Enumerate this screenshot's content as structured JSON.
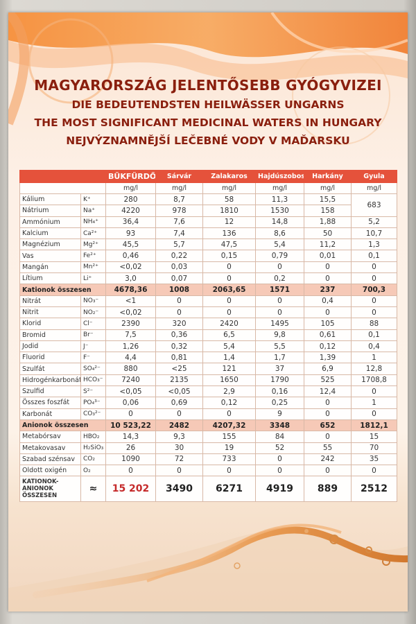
{
  "title": {
    "hu": "MAGYARORSZÁG JELENTŐSEBB GYÓGYVIZEI",
    "de": "DIE BEDEUTENDSTEN HEILWÄSSER UNGARNS",
    "en": "THE MOST SIGNIFICANT MEDICINAL WATERS IN HUNGARY",
    "cz": "NEJVÝZNAMNĚJŠÍ LEČEBNÉ VODY V MAĎARSKU"
  },
  "columns": [
    "BÜKFÜRDŐ",
    "Sárvár",
    "Zalakaros",
    "Hajdúszoboszló",
    "Harkány",
    "Gyula"
  ],
  "unit": "mg/l",
  "cations": [
    {
      "name": "Kálium",
      "sym": "K⁺",
      "v": [
        "280",
        "8,7",
        "58",
        "11,3",
        "15,5",
        ""
      ]
    },
    {
      "name": "Nátrium",
      "sym": "Na⁺",
      "v": [
        "4220",
        "978",
        "1810",
        "1530",
        "158",
        "683"
      ]
    },
    {
      "name": "Ammónium",
      "sym": "NH₄⁺",
      "v": [
        "36,4",
        "7,6",
        "12",
        "14,8",
        "1,88",
        "5,2"
      ]
    },
    {
      "name": "Kalcium",
      "sym": "Ca²⁺",
      "v": [
        "93",
        "7,4",
        "136",
        "8,6",
        "50",
        "10,7"
      ]
    },
    {
      "name": "Magnézium",
      "sym": "Mg²⁺",
      "v": [
        "45,5",
        "5,7",
        "47,5",
        "5,4",
        "11,2",
        "1,3"
      ]
    },
    {
      "name": "Vas",
      "sym": "Fe²⁺",
      "v": [
        "0,46",
        "0,22",
        "0,15",
        "0,79",
        "0,01",
        "0,1"
      ]
    },
    {
      "name": "Mangán",
      "sym": "Mn²⁺",
      "v": [
        "<0,02",
        "0,03",
        "0",
        "0",
        "0",
        "0"
      ]
    },
    {
      "name": "Lítium",
      "sym": "Li⁺",
      "v": [
        "3,0",
        "0,07",
        "0",
        "0,2",
        "0",
        "0"
      ]
    }
  ],
  "cation_sum": {
    "name": "Kationok összesen",
    "v": [
      "4678,36",
      "1008",
      "2063,65",
      "1571",
      "237",
      "700,3"
    ]
  },
  "anions": [
    {
      "name": "Nitrát",
      "sym": "NO₃⁻",
      "v": [
        "<1",
        "0",
        "0",
        "0",
        "0,4",
        "0"
      ]
    },
    {
      "name": "Nitrit",
      "sym": "NO₂⁻",
      "v": [
        "<0,02",
        "0",
        "0",
        "0",
        "0",
        "0"
      ]
    },
    {
      "name": "Klorid",
      "sym": "Cl⁻",
      "v": [
        "2390",
        "320",
        "2420",
        "1495",
        "105",
        "88"
      ]
    },
    {
      "name": "Bromid",
      "sym": "Br⁻",
      "v": [
        "7,5",
        "0,36",
        "6,5",
        "9,8",
        "0,61",
        "0,1"
      ]
    },
    {
      "name": "Jodid",
      "sym": "J⁻",
      "v": [
        "1,26",
        "0,32",
        "5,4",
        "5,5",
        "0,12",
        "0,4"
      ]
    },
    {
      "name": "Fluorid",
      "sym": "F⁻",
      "v": [
        "4,4",
        "0,81",
        "1,4",
        "1,7",
        "1,39",
        "1"
      ]
    },
    {
      "name": "Szulfát",
      "sym": "SO₄²⁻",
      "v": [
        "880",
        "<25",
        "121",
        "37",
        "6,9",
        "12,8"
      ]
    },
    {
      "name": "Hidrogénkarbonát",
      "sym": "HCO₃⁻",
      "v": [
        "7240",
        "2135",
        "1650",
        "1790",
        "525",
        "1708,8"
      ]
    },
    {
      "name": "Szulfid",
      "sym": "S²⁻",
      "v": [
        "<0,05",
        "<0,05",
        "2,9",
        "0,16",
        "12,4",
        "0"
      ]
    },
    {
      "name": "Összes foszfát",
      "sym": "PO₄³⁻",
      "v": [
        "0,06",
        "0,69",
        "0,12",
        "0,25",
        "0",
        "1"
      ]
    },
    {
      "name": "Karbonát",
      "sym": "CO₃²⁻",
      "v": [
        "0",
        "0",
        "0",
        "9",
        "0",
        "0"
      ]
    }
  ],
  "anion_sum": {
    "name": "Anionok összesen",
    "v": [
      "10 523,22",
      "2482",
      "4207,32",
      "3348",
      "652",
      "1812,1"
    ]
  },
  "other": [
    {
      "name": "Metabórsav",
      "sym": "HBO₂",
      "v": [
        "14,3",
        "9,3",
        "155",
        "84",
        "0",
        "15"
      ]
    },
    {
      "name": "Metakovasav",
      "sym": "H₂SiO₃",
      "v": [
        "26",
        "30",
        "19",
        "52",
        "55",
        "70"
      ]
    },
    {
      "name": "Szabad szénsav",
      "sym": "CO₂",
      "v": [
        "1090",
        "72",
        "733",
        "0",
        "242",
        "35"
      ]
    },
    {
      "name": "Oldott oxigén",
      "sym": "O₂",
      "v": [
        "0",
        "0",
        "0",
        "0",
        "0",
        "0"
      ]
    }
  ],
  "total": {
    "label": "KATIONOK-ANIONOK ÖSSZESEN",
    "sym": "≈",
    "v": [
      "15 202",
      "3490",
      "6271",
      "4919",
      "889",
      "2512"
    ]
  },
  "colors": {
    "header": "#e5523b",
    "sum_row": "#f6c9b7",
    "title": "#8a1f0e",
    "total_first": "#c52a2a"
  }
}
